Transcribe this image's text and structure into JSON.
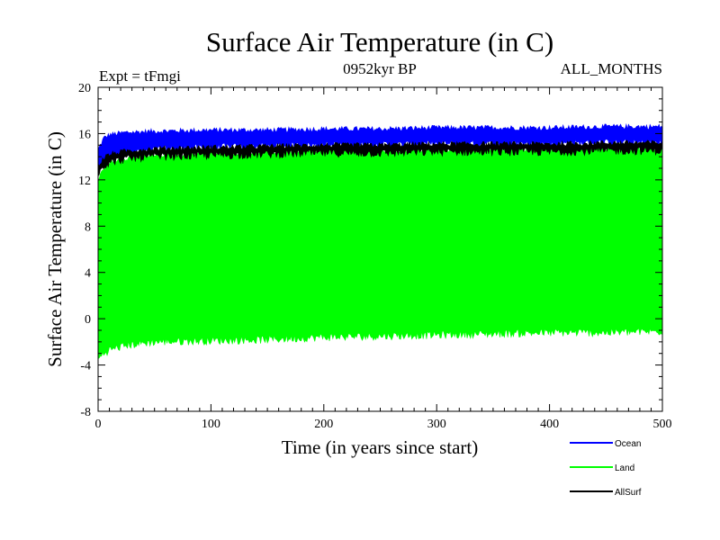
{
  "chart_data": {
    "type": "line",
    "title": "Surface Air Temperature (in C)",
    "subtitle_left": "Expt = tFmgi",
    "subtitle_center": "0952kyr BP",
    "subtitle_right": "ALL_MONTHS",
    "xlabel": "Time (in years since start)",
    "ylabel": "Surface Air Temperature (in C)",
    "xlim": [
      0,
      500
    ],
    "ylim": [
      -8,
      20
    ],
    "x_ticks": [
      0,
      100,
      200,
      300,
      400,
      500
    ],
    "y_ticks": [
      -8,
      -4,
      0,
      4,
      8,
      12,
      16,
      20
    ],
    "legend_position": "bottom-right",
    "series": [
      {
        "name": "Ocean",
        "color": "#0000ff",
        "x": [
          0,
          5,
          10,
          25,
          50,
          100,
          150,
          200,
          250,
          300,
          350,
          400,
          450,
          500
        ],
        "upper": [
          14.6,
          15.6,
          15.9,
          16.1,
          16.2,
          16.3,
          16.3,
          16.4,
          16.4,
          16.5,
          16.5,
          16.5,
          16.6,
          16.6
        ],
        "lower": [
          12.8,
          13.6,
          14.0,
          14.3,
          14.6,
          14.8,
          14.9,
          15.0,
          15.0,
          15.1,
          15.1,
          15.1,
          15.2,
          15.2
        ]
      },
      {
        "name": "Land",
        "color": "#00ff00",
        "x": [
          0,
          5,
          10,
          25,
          50,
          100,
          150,
          200,
          250,
          300,
          350,
          400,
          450,
          500
        ],
        "upper": [
          12.0,
          13.0,
          13.5,
          13.9,
          14.1,
          14.3,
          14.4,
          14.5,
          14.5,
          14.6,
          14.6,
          14.6,
          14.7,
          14.7
        ],
        "lower": [
          -3.5,
          -3.0,
          -2.7,
          -2.3,
          -2.0,
          -1.9,
          -1.8,
          -1.6,
          -1.5,
          -1.4,
          -1.3,
          -1.2,
          -1.2,
          -1.1
        ]
      },
      {
        "name": "AllSurf",
        "color": "#000000",
        "x": [
          0,
          5,
          10,
          25,
          50,
          100,
          150,
          200,
          250,
          300,
          350,
          400,
          450,
          500
        ],
        "upper": [
          13.2,
          13.9,
          14.2,
          14.5,
          14.7,
          14.8,
          14.9,
          15.0,
          15.0,
          15.1,
          15.1,
          15.1,
          15.2,
          15.2
        ],
        "lower": [
          12.6,
          13.2,
          13.5,
          13.8,
          14.0,
          14.1,
          14.2,
          14.3,
          14.3,
          14.4,
          14.4,
          14.4,
          14.5,
          14.5
        ]
      }
    ]
  }
}
